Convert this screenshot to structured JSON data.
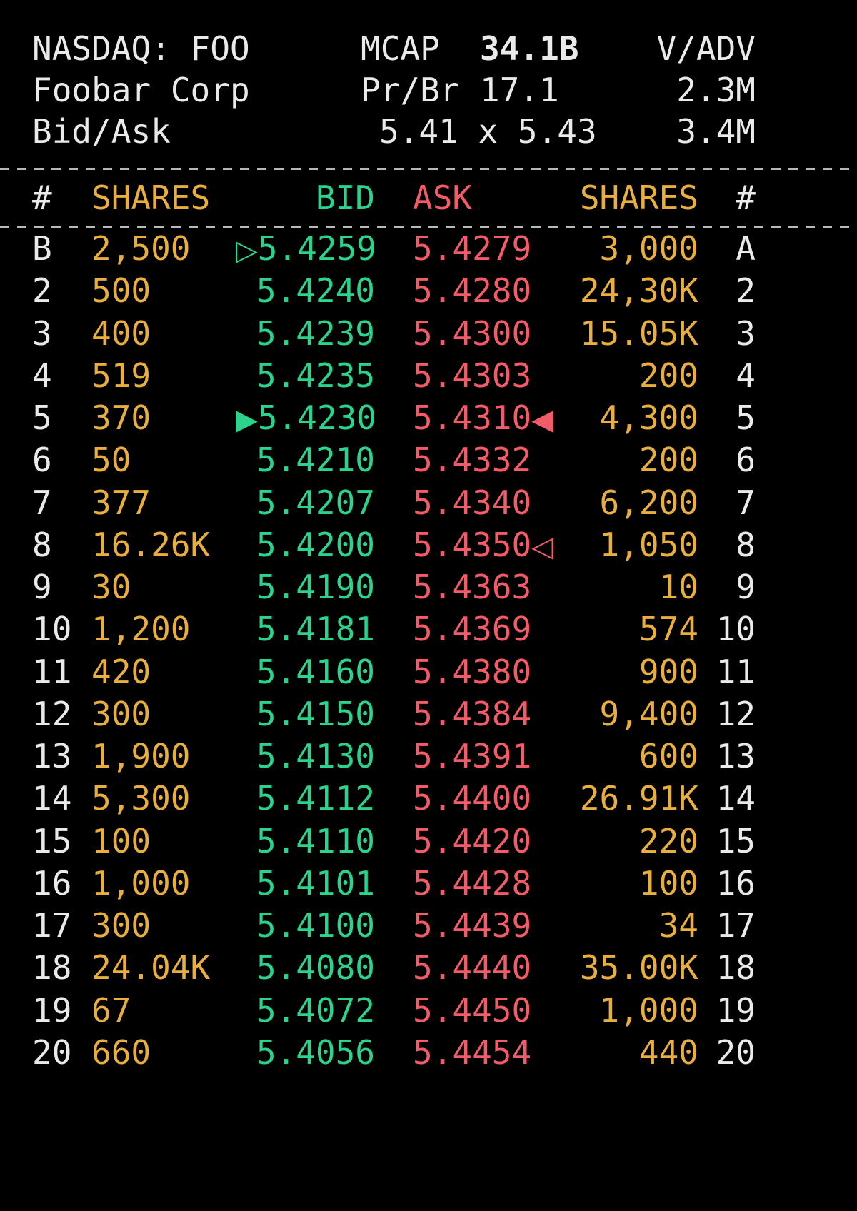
{
  "colors": {
    "background": "#000000",
    "text": "#eaeaea",
    "shares": "#e8ae3f",
    "bid": "#2bd38c",
    "ask": "#f25b68",
    "divider": "#b9b9b9"
  },
  "header": {
    "line1": {
      "left": "NASDAQ: FOO",
      "center_label": "MCAP",
      "center_value": "34.1B",
      "right": "V/ADV"
    },
    "line2": {
      "left": "Foobar Corp",
      "center_label": "Pr/Br",
      "center_value": "17.1",
      "right": "2.3M"
    },
    "line3": {
      "left": "Bid/Ask",
      "center_value": "5.41 x 5.43",
      "right": "3.4M"
    }
  },
  "columns": {
    "bid_num": "#",
    "bid_shares": "SHARES",
    "bid": "BID",
    "ask": "ASK",
    "ask_shares": "SHARES",
    "ask_num": "#"
  },
  "book": {
    "rows": [
      {
        "bid_num": "B",
        "bid_shares": "2,500",
        "bid_marker": "▷",
        "bid_price": "5.4259",
        "ask_price": "5.4279",
        "ask_marker": "",
        "ask_shares": "3,000",
        "ask_num": "A"
      },
      {
        "bid_num": "2",
        "bid_shares": "500",
        "bid_marker": "",
        "bid_price": "5.4240",
        "ask_price": "5.4280",
        "ask_marker": "",
        "ask_shares": "24,30K",
        "ask_num": "2"
      },
      {
        "bid_num": "3",
        "bid_shares": "400",
        "bid_marker": "",
        "bid_price": "5.4239",
        "ask_price": "5.4300",
        "ask_marker": "",
        "ask_shares": "15.05K",
        "ask_num": "3"
      },
      {
        "bid_num": "4",
        "bid_shares": "519",
        "bid_marker": "",
        "bid_price": "5.4235",
        "ask_price": "5.4303",
        "ask_marker": "",
        "ask_shares": "200",
        "ask_num": "4"
      },
      {
        "bid_num": "5",
        "bid_shares": "370",
        "bid_marker": "▶",
        "bid_price": "5.4230",
        "ask_price": "5.4310",
        "ask_marker": "◀",
        "ask_shares": "4,300",
        "ask_num": "5"
      },
      {
        "bid_num": "6",
        "bid_shares": "50",
        "bid_marker": "",
        "bid_price": "5.4210",
        "ask_price": "5.4332",
        "ask_marker": "",
        "ask_shares": "200",
        "ask_num": "6"
      },
      {
        "bid_num": "7",
        "bid_shares": "377",
        "bid_marker": "",
        "bid_price": "5.4207",
        "ask_price": "5.4340",
        "ask_marker": "",
        "ask_shares": "6,200",
        "ask_num": "7"
      },
      {
        "bid_num": "8",
        "bid_shares": "16.26K",
        "bid_marker": "",
        "bid_price": "5.4200",
        "ask_price": "5.4350",
        "ask_marker": "◁",
        "ask_shares": "1,050",
        "ask_num": "8"
      },
      {
        "bid_num": "9",
        "bid_shares": "30",
        "bid_marker": "",
        "bid_price": "5.4190",
        "ask_price": "5.4363",
        "ask_marker": "",
        "ask_shares": "10",
        "ask_num": "9"
      },
      {
        "bid_num": "10",
        "bid_shares": "1,200",
        "bid_marker": "",
        "bid_price": "5.4181",
        "ask_price": "5.4369",
        "ask_marker": "",
        "ask_shares": "574",
        "ask_num": "10"
      },
      {
        "bid_num": "11",
        "bid_shares": "420",
        "bid_marker": "",
        "bid_price": "5.4160",
        "ask_price": "5.4380",
        "ask_marker": "",
        "ask_shares": "900",
        "ask_num": "11"
      },
      {
        "bid_num": "12",
        "bid_shares": "300",
        "bid_marker": "",
        "bid_price": "5.4150",
        "ask_price": "5.4384",
        "ask_marker": "",
        "ask_shares": "9,400",
        "ask_num": "12"
      },
      {
        "bid_num": "13",
        "bid_shares": "1,900",
        "bid_marker": "",
        "bid_price": "5.4130",
        "ask_price": "5.4391",
        "ask_marker": "",
        "ask_shares": "600",
        "ask_num": "13"
      },
      {
        "bid_num": "14",
        "bid_shares": "5,300",
        "bid_marker": "",
        "bid_price": "5.4112",
        "ask_price": "5.4400",
        "ask_marker": "",
        "ask_shares": "26.91K",
        "ask_num": "14"
      },
      {
        "bid_num": "15",
        "bid_shares": "100",
        "bid_marker": "",
        "bid_price": "5.4110",
        "ask_price": "5.4420",
        "ask_marker": "",
        "ask_shares": "220",
        "ask_num": "15"
      },
      {
        "bid_num": "16",
        "bid_shares": "1,000",
        "bid_marker": "",
        "bid_price": "5.4101",
        "ask_price": "5.4428",
        "ask_marker": "",
        "ask_shares": "100",
        "ask_num": "16"
      },
      {
        "bid_num": "17",
        "bid_shares": "300",
        "bid_marker": "",
        "bid_price": "5.4100",
        "ask_price": "5.4439",
        "ask_marker": "",
        "ask_shares": "34",
        "ask_num": "17"
      },
      {
        "bid_num": "18",
        "bid_shares": "24.04K",
        "bid_marker": "",
        "bid_price": "5.4080",
        "ask_price": "5.4440",
        "ask_marker": "",
        "ask_shares": "35.00K",
        "ask_num": "18"
      },
      {
        "bid_num": "19",
        "bid_shares": "67",
        "bid_marker": "",
        "bid_price": "5.4072",
        "ask_price": "5.4450",
        "ask_marker": "",
        "ask_shares": "1,000",
        "ask_num": "19"
      },
      {
        "bid_num": "20",
        "bid_shares": "660",
        "bid_marker": "",
        "bid_price": "5.4056",
        "ask_price": "5.4454",
        "ask_marker": "",
        "ask_shares": "440",
        "ask_num": "20"
      }
    ]
  }
}
